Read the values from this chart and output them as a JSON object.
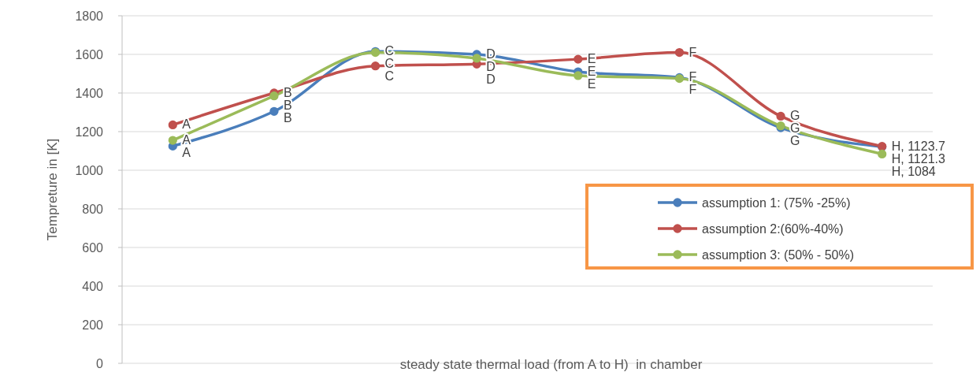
{
  "chart_data": {
    "type": "line",
    "xlabel": "steady state thermal load (from A to H)  in chamber",
    "ylabel": "Tempreture in [K]",
    "categories": [
      null,
      null,
      null,
      null,
      null,
      null,
      null,
      null
    ],
    "series": [
      {
        "name": "assumption 1: (75% -25%)",
        "color": "#4a7ebb",
        "values": [
          1125,
          1305,
          1615,
          1600,
          1510,
          1480,
          1220,
          1121.3
        ],
        "value_labels": [
          "A",
          "B",
          "C",
          "D",
          "E",
          "F",
          "G",
          "H, 1121.3"
        ]
      },
      {
        "name": "assumption 2:(60%-40%)",
        "color": "#c0504d",
        "values": [
          1235,
          1400,
          1540,
          1550,
          1575,
          1610,
          1280,
          1123.7
        ],
        "value_labels": [
          "A",
          "B",
          "C",
          "D",
          "E",
          "F",
          "G",
          "H, 1123.7"
        ]
      },
      {
        "name": "assumption 3: (50% - 50%)",
        "color": "#9bbb59",
        "values": [
          1155,
          1385,
          1610,
          1580,
          1490,
          1475,
          1230,
          1084
        ],
        "value_labels": [
          "A",
          "B",
          "C",
          "D",
          "E",
          "F",
          "G",
          "H, 1084"
        ]
      }
    ],
    "ylim": [
      0,
      1800
    ],
    "yticks": [
      0,
      200,
      400,
      600,
      800,
      1000,
      1200,
      1400,
      1600,
      1800
    ],
    "grid": "y",
    "legend": "right",
    "marker": "circle",
    "line_style": "solid"
  }
}
